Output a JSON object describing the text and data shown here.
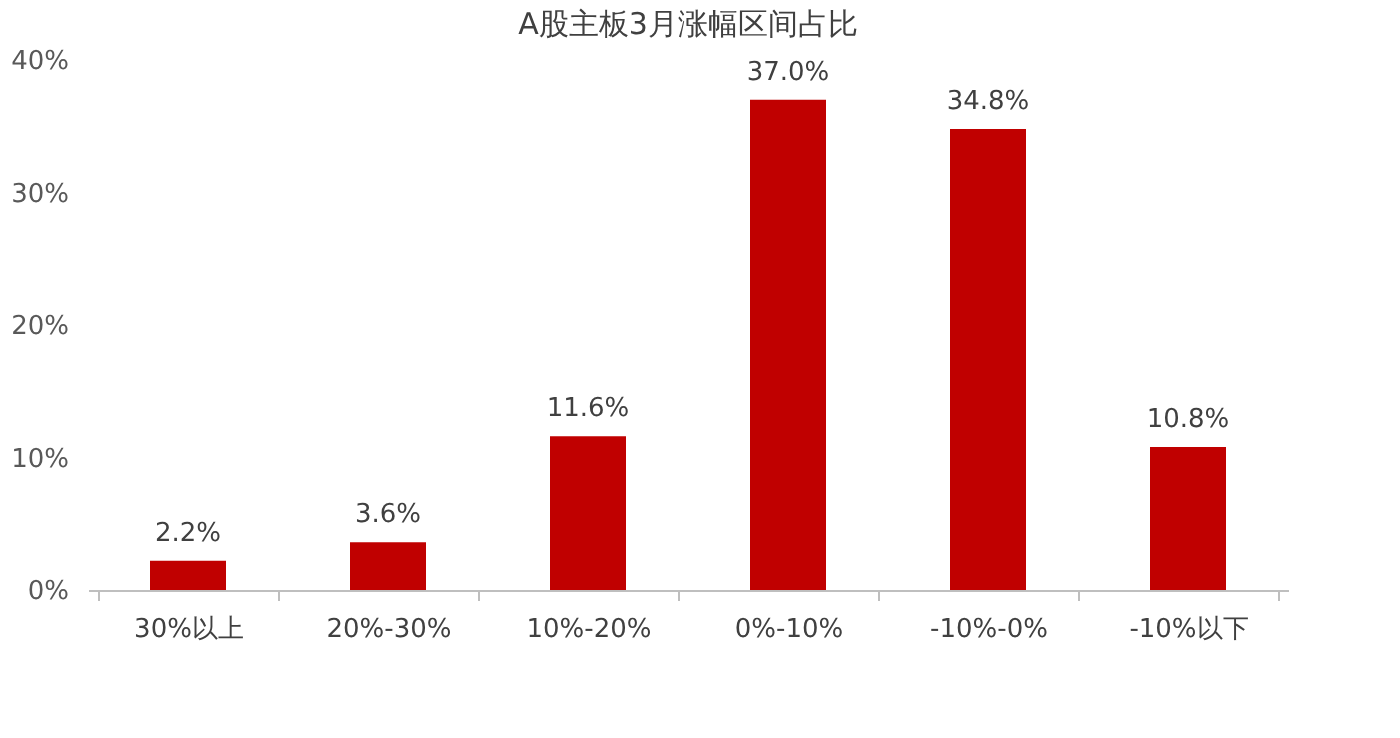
{
  "chart_data": {
    "type": "bar",
    "title": "A股主板3月涨幅区间占比",
    "categories": [
      "30%以上",
      "20%-30%",
      "10%-20%",
      "0%-10%",
      "-10%-0%",
      "-10%以下"
    ],
    "values": [
      2.2,
      3.6,
      11.6,
      37.0,
      34.8,
      10.8
    ],
    "value_labels": [
      "2.2%",
      "3.6%",
      "11.6%",
      "37.0%",
      "34.8%",
      "10.8%"
    ],
    "color": "#c00000",
    "ylim": [
      0,
      40
    ],
    "yticks": [
      {
        "value": 0,
        "label": "0%"
      },
      {
        "value": 10,
        "label": "10%"
      },
      {
        "value": 20,
        "label": "20%"
      },
      {
        "value": 30,
        "label": "30%"
      },
      {
        "value": 40,
        "label": "40%"
      }
    ],
    "grid": false
  }
}
